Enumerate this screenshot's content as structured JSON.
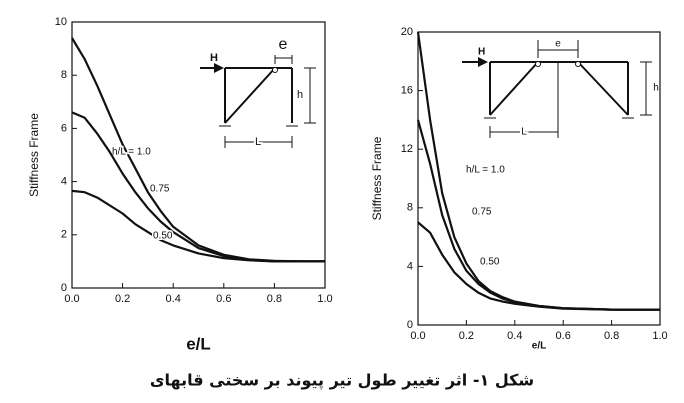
{
  "chart_data": [
    {
      "type": "line",
      "ylabel": "Stiffness Frame",
      "xlabel": "e/L",
      "x": [
        0,
        0.05,
        0.1,
        0.15,
        0.2,
        0.25,
        0.3,
        0.35,
        0.4,
        0.5,
        0.6,
        0.7,
        0.8,
        0.9,
        1.0
      ],
      "series": [
        {
          "name": "h/L = 1.0",
          "color": "#111111",
          "values": [
            9.4,
            8.6,
            7.6,
            6.5,
            5.4,
            4.5,
            3.6,
            2.9,
            2.3,
            1.6,
            1.25,
            1.08,
            1.02,
            1.0,
            1.0
          ]
        },
        {
          "name": "0.75",
          "color": "#111111",
          "values": [
            6.6,
            6.4,
            5.8,
            5.1,
            4.3,
            3.6,
            3.0,
            2.5,
            2.1,
            1.5,
            1.2,
            1.06,
            1.0,
            1.0,
            1.0
          ]
        },
        {
          "name": "0.50",
          "color": "#111111",
          "values": [
            3.65,
            3.6,
            3.4,
            3.1,
            2.8,
            2.4,
            2.1,
            1.8,
            1.6,
            1.3,
            1.12,
            1.04,
            1.0,
            1.0,
            1.0
          ]
        }
      ],
      "xlim": [
        0,
        1
      ],
      "ylim": [
        0,
        10
      ],
      "xticks": [
        {
          "value": 0,
          "label": "0.0"
        },
        0.2,
        0.4,
        0.6,
        0.8,
        {
          "value": 1,
          "label": "1.0"
        }
      ],
      "yticks": [
        0,
        2,
        4,
        6,
        8,
        10
      ],
      "inset": {
        "load": "H",
        "offset": "e",
        "height": "h",
        "span": "L"
      }
    },
    {
      "type": "line",
      "ylabel": "Stiffness Frame",
      "xlabel": "e/L",
      "x": [
        0,
        0.05,
        0.1,
        0.15,
        0.2,
        0.25,
        0.3,
        0.35,
        0.4,
        0.5,
        0.6,
        0.7,
        0.8,
        0.9,
        1.0
      ],
      "series": [
        {
          "name": "h/L = 1.0",
          "color": "#111111",
          "values": [
            20,
            14,
            9,
            6,
            4.2,
            3.0,
            2.3,
            1.9,
            1.6,
            1.3,
            1.15,
            1.1,
            1.05,
            1.05,
            1.05
          ]
        },
        {
          "name": "0.75",
          "color": "#111111",
          "values": [
            14,
            11,
            7.5,
            5.2,
            3.7,
            2.8,
            2.2,
            1.8,
            1.55,
            1.3,
            1.15,
            1.1,
            1.05,
            1.05,
            1.05
          ]
        },
        {
          "name": "0.50",
          "color": "#111111",
          "values": [
            7,
            6.3,
            4.8,
            3.6,
            2.8,
            2.2,
            1.8,
            1.6,
            1.45,
            1.25,
            1.12,
            1.08,
            1.05,
            1.05,
            1.05
          ]
        }
      ],
      "xlim": [
        0,
        1
      ],
      "ylim": [
        0,
        20
      ],
      "xticks": [
        {
          "value": 0,
          "label": "0.0"
        },
        0.2,
        0.4,
        0.6,
        0.8,
        {
          "value": 1,
          "label": "1.0"
        }
      ],
      "yticks": [
        0,
        4,
        8,
        12,
        16,
        20
      ],
      "inset": {
        "load": "H",
        "offset": "e",
        "height": "h",
        "span": "L"
      }
    }
  ],
  "caption": "شکل ۱- اثر تغییر طول تیر پیوند بر سختی قابهای"
}
